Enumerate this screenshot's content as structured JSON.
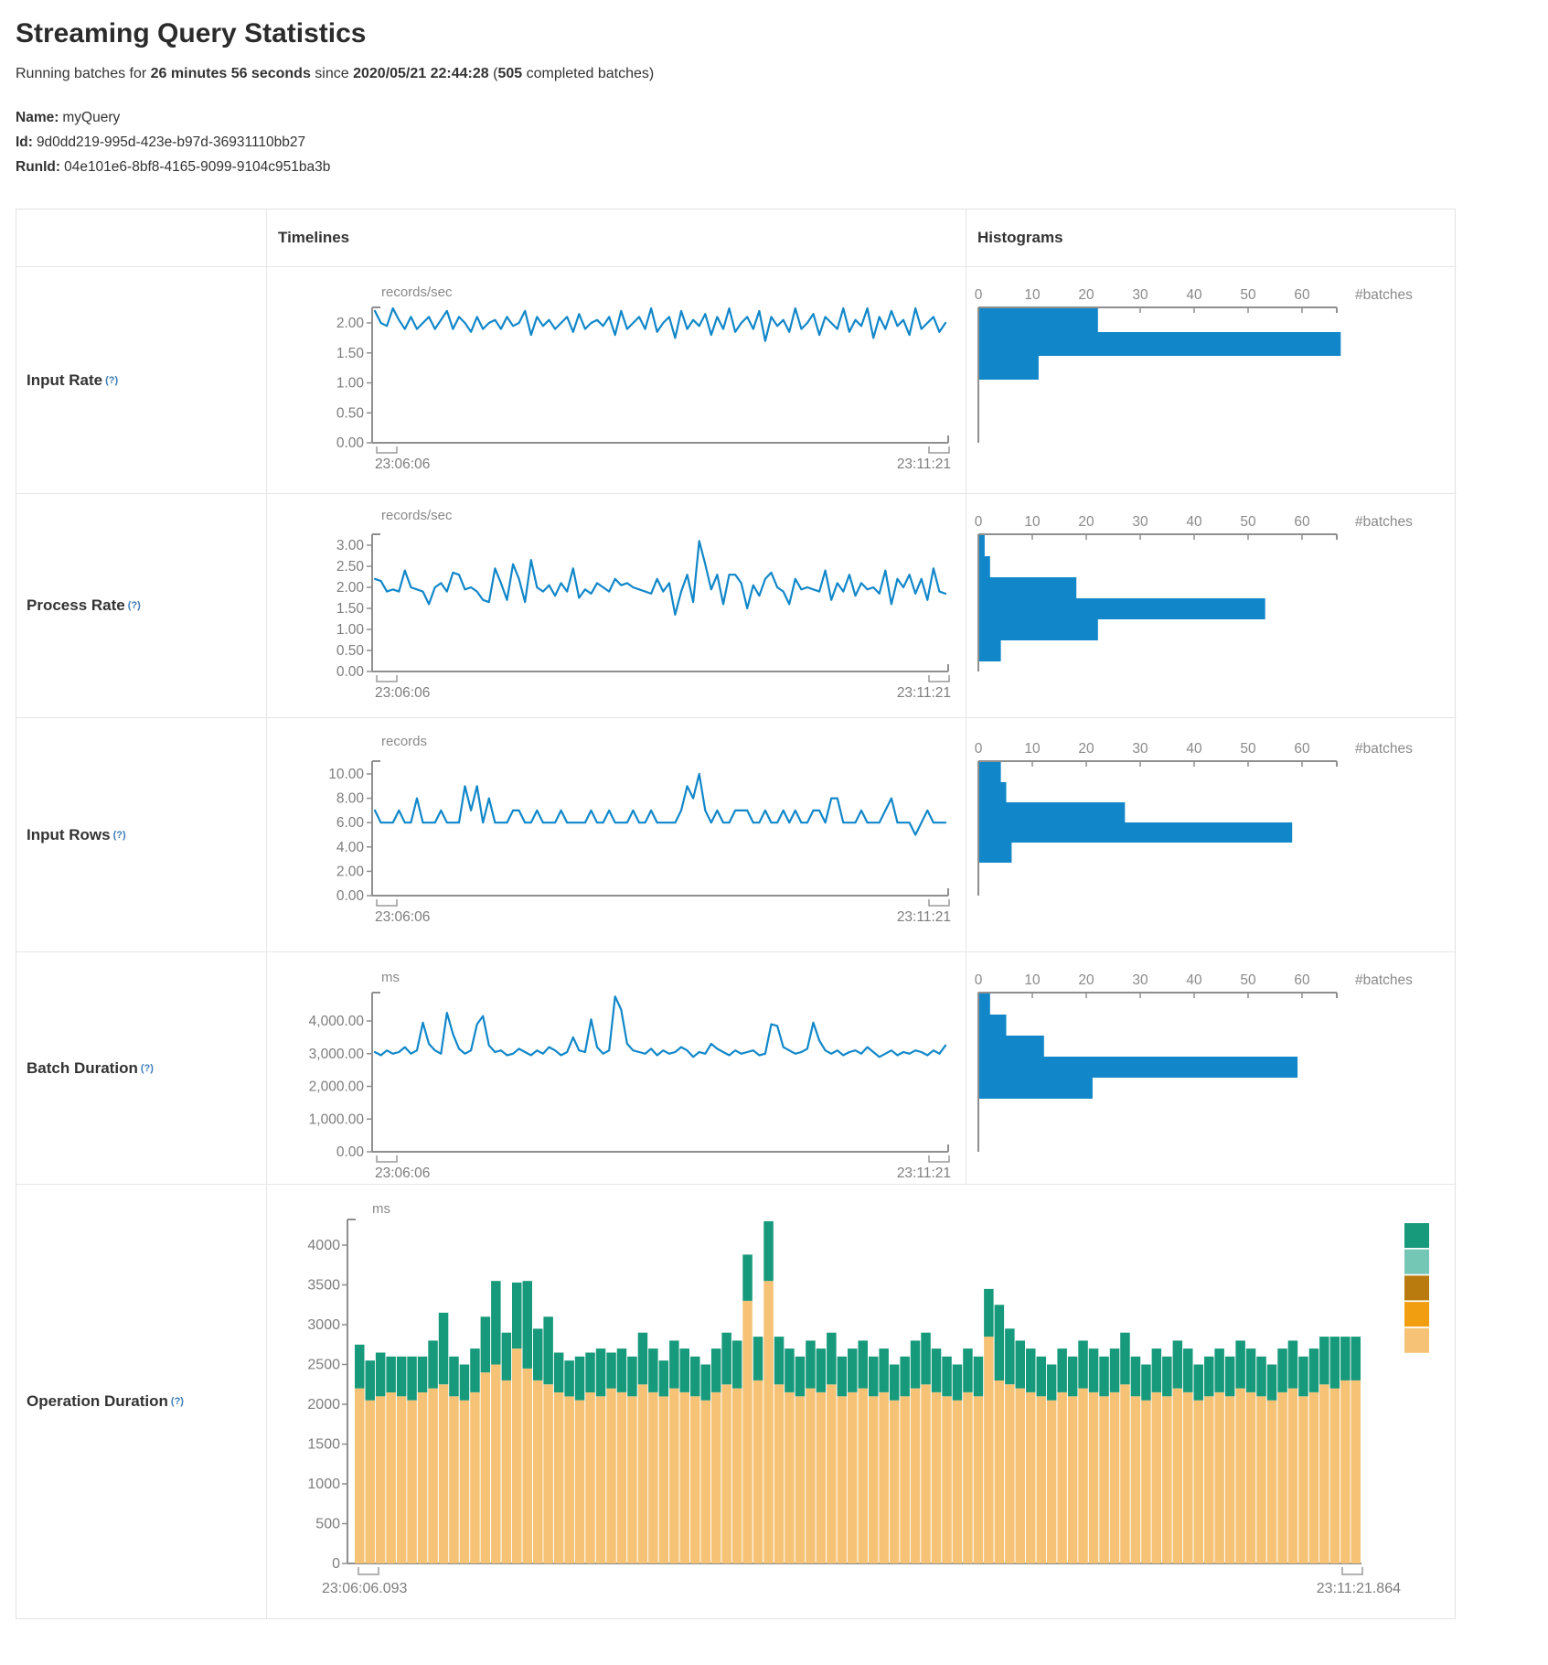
{
  "page": {
    "title": "Streaming Query Statistics",
    "subtitle_prefix": "Running batches for ",
    "duration": "26 minutes 56 seconds",
    "since_text": " since ",
    "start_time": "2020/05/21 22:44:28",
    "open_paren": " (",
    "batches_count": "505",
    "subtitle_suffix": " completed batches)",
    "name_label": "Name:",
    "name_value": "myQuery",
    "id_label": "Id:",
    "id_value": "9d0dd219-995d-423e-b97d-36931110bb27",
    "runid_label": "RunId:",
    "runid_value": "04e101e6-8bf8-4165-9099-9104c951ba3b"
  },
  "table": {
    "col_timelines": "Timelines",
    "col_histograms": "Histograms",
    "help_marker": "(?)",
    "hist_axis_label": "#batches",
    "hist_ticks": [
      0,
      10,
      20,
      30,
      40,
      50,
      60
    ]
  },
  "colors": {
    "line_blue": "#1187c9",
    "hist_blue": "#1187c9",
    "axis_gray": "#8f8f8f",
    "tick_text": "#8a8a8a",
    "stack_base_tan": "#f6c376",
    "stack_top_green": "#179a7c",
    "legend_colors": [
      "#179a7c",
      "#74c6b5",
      "#b97a0e",
      "#f19e11",
      "#f6c376"
    ]
  },
  "rows": [
    {
      "label": "Input Rate",
      "type": "line",
      "unit": "records/sec",
      "x_start_label": "23:06:06",
      "x_end_label": "23:11:21",
      "y_ticks": [
        "2.00",
        "1.50",
        "1.00",
        "0.50",
        "0.00"
      ],
      "y_tick_values": [
        2,
        1.5,
        1,
        0.5,
        0
      ],
      "values": [
        2.2,
        2.0,
        1.95,
        2.3,
        2.05,
        1.9,
        2.1,
        1.9,
        2.0,
        2.1,
        1.9,
        2.05,
        2.2,
        1.9,
        2.1,
        2.0,
        1.85,
        2.1,
        1.9,
        2.0,
        2.05,
        1.9,
        2.1,
        1.95,
        2.0,
        2.2,
        1.8,
        2.1,
        1.95,
        2.05,
        1.9,
        2.0,
        2.1,
        1.85,
        2.15,
        1.9,
        2.0,
        2.05,
        1.95,
        2.1,
        1.8,
        2.2,
        1.9,
        2.0,
        2.1,
        1.9,
        2.3,
        1.85,
        2.0,
        2.1,
        1.75,
        2.2,
        1.9,
        2.05,
        1.95,
        2.15,
        1.8,
        2.1,
        1.9,
        2.3,
        1.85,
        2.0,
        2.1,
        1.9,
        2.2,
        1.7,
        2.1,
        1.95,
        2.05,
        1.85,
        2.3,
        1.9,
        2.0,
        2.15,
        1.8,
        2.1,
        2.0,
        1.9,
        2.25,
        1.85,
        2.05,
        1.95,
        2.3,
        1.75,
        2.1,
        1.9,
        2.2,
        1.95,
        2.05,
        1.8,
        2.25,
        1.9,
        2.0,
        2.1,
        1.85,
        2.0
      ],
      "histogram": [
        22,
        67,
        11
      ]
    },
    {
      "label": "Process Rate",
      "type": "line",
      "unit": "records/sec",
      "x_start_label": "23:06:06",
      "x_end_label": "23:11:21",
      "y_ticks": [
        "3.00",
        "2.50",
        "2.00",
        "1.50",
        "1.00",
        "0.50",
        "0.00"
      ],
      "y_tick_values": [
        3,
        2.5,
        2,
        1.5,
        1,
        0.5,
        0
      ],
      "values": [
        2.2,
        2.15,
        1.9,
        1.95,
        1.9,
        2.4,
        2.0,
        1.95,
        1.9,
        1.6,
        2.0,
        2.1,
        1.9,
        2.35,
        2.3,
        1.95,
        2.0,
        1.9,
        1.7,
        1.65,
        2.45,
        2.1,
        1.7,
        2.55,
        2.2,
        1.65,
        2.65,
        2.0,
        1.9,
        2.05,
        1.8,
        2.1,
        1.9,
        2.45,
        1.75,
        1.95,
        1.85,
        2.1,
        2.0,
        1.9,
        2.2,
        2.05,
        2.1,
        2.0,
        1.95,
        1.9,
        1.85,
        2.2,
        1.9,
        2.1,
        1.35,
        1.9,
        2.3,
        1.65,
        3.1,
        2.55,
        1.95,
        2.3,
        1.6,
        2.3,
        2.3,
        2.1,
        1.5,
        2.05,
        1.8,
        2.2,
        2.35,
        2.0,
        1.9,
        1.6,
        2.2,
        1.95,
        2.0,
        1.95,
        1.9,
        2.4,
        1.7,
        2.1,
        1.9,
        2.3,
        1.8,
        2.1,
        1.95,
        2.0,
        1.85,
        2.4,
        1.6,
        2.2,
        2.0,
        2.3,
        1.85,
        2.2,
        1.7,
        2.45,
        1.9,
        1.85
      ],
      "histogram": [
        1,
        2,
        18,
        53,
        22,
        4
      ]
    },
    {
      "label": "Input Rows",
      "type": "line",
      "unit": "records",
      "x_start_label": "23:06:06",
      "x_end_label": "23:11:21",
      "y_ticks": [
        "10.00",
        "8.00",
        "6.00",
        "4.00",
        "2.00",
        "0.00"
      ],
      "y_tick_values": [
        10,
        8,
        6,
        4,
        2,
        0
      ],
      "values": [
        7,
        6,
        6,
        6,
        7,
        6,
        6,
        8,
        6,
        6,
        6,
        7,
        6,
        6,
        6,
        9,
        7,
        9,
        6,
        8,
        6,
        6,
        6,
        7,
        7,
        6,
        6,
        7,
        6,
        6,
        6,
        7,
        6,
        6,
        6,
        6,
        7,
        6,
        6,
        7,
        6,
        6,
        6,
        7,
        6,
        6,
        7,
        6,
        6,
        6,
        6,
        7,
        9,
        8,
        10,
        7,
        6,
        7,
        6,
        6,
        7,
        7,
        7,
        6,
        6,
        7,
        6,
        6,
        7,
        6,
        7,
        6,
        6,
        7,
        7,
        6,
        8,
        8,
        6,
        6,
        6,
        7,
        6,
        6,
        6,
        7,
        8,
        6,
        6,
        6,
        5,
        6,
        7,
        6,
        6,
        6
      ],
      "histogram": [
        4,
        5,
        27,
        58,
        6
      ]
    },
    {
      "label": "Batch Duration",
      "type": "line",
      "unit": "ms",
      "x_start_label": "23:06:06",
      "x_end_label": "23:11:21",
      "y_ticks": [
        "4,000.00",
        "3,000.00",
        "2,000.00",
        "1,000.00",
        "0.00"
      ],
      "y_tick_values": [
        4000,
        3000,
        2000,
        1000,
        0
      ],
      "values": [
        3050,
        2950,
        3100,
        3000,
        3050,
        3200,
        3000,
        3100,
        3950,
        3300,
        3100,
        3000,
        4250,
        3600,
        3150,
        3000,
        3100,
        3900,
        4150,
        3250,
        3050,
        3100,
        2950,
        3000,
        3150,
        3050,
        2950,
        3100,
        3000,
        3200,
        3100,
        2950,
        3050,
        3500,
        3100,
        3050,
        4050,
        3200,
        3000,
        3100,
        4750,
        4350,
        3300,
        3100,
        3050,
        3000,
        3150,
        2950,
        3100,
        3000,
        3050,
        3200,
        3100,
        2900,
        3050,
        3000,
        3300,
        3150,
        3050,
        2950,
        3100,
        3000,
        3050,
        3100,
        2950,
        3000,
        3900,
        3850,
        3200,
        3100,
        3000,
        3050,
        3150,
        3950,
        3400,
        3100,
        3000,
        3100,
        2950,
        3050,
        3100,
        3000,
        3200,
        3050,
        2900,
        3000,
        3100,
        2950,
        3050,
        3000,
        3100,
        3050,
        2950,
        3100,
        3000,
        3250
      ],
      "histogram": [
        2,
        5,
        12,
        59,
        21
      ]
    }
  ],
  "operation_duration": {
    "label": "Operation Duration",
    "type": "stacked-bar",
    "unit": "ms",
    "x_start_label": "23:06:06.093",
    "x_end_label": "23:11:21.864",
    "y_ticks": [
      "4000",
      "3500",
      "3000",
      "2500",
      "2000",
      "1500",
      "1000",
      "500",
      "0"
    ],
    "y_tick_values": [
      4000,
      3500,
      3000,
      2500,
      2000,
      1500,
      1000,
      500,
      0
    ],
    "bars": {
      "base": [
        2200,
        2050,
        2100,
        2150,
        2100,
        2050,
        2150,
        2200,
        2250,
        2100,
        2050,
        2150,
        2400,
        2500,
        2300,
        2700,
        2450,
        2300,
        2250,
        2150,
        2100,
        2050,
        2150,
        2100,
        2200,
        2150,
        2100,
        2250,
        2150,
        2100,
        2200,
        2150,
        2100,
        2050,
        2150,
        2250,
        2200,
        3300,
        2300,
        3550,
        2250,
        2150,
        2100,
        2200,
        2150,
        2250,
        2100,
        2150,
        2200,
        2100,
        2150,
        2050,
        2100,
        2200,
        2250,
        2150,
        2100,
        2050,
        2150,
        2100,
        2850,
        2300,
        2250,
        2200,
        2150,
        2100,
        2050,
        2150,
        2100,
        2200,
        2150,
        2100,
        2150,
        2250,
        2100,
        2050,
        2150,
        2100,
        2200,
        2150,
        2050,
        2100,
        2150,
        2100,
        2200,
        2150,
        2100,
        2050,
        2150,
        2200,
        2100,
        2150,
        2250,
        2200,
        2300,
        2300
      ],
      "top": [
        550,
        500,
        550,
        450,
        500,
        550,
        450,
        600,
        900,
        500,
        450,
        550,
        700,
        1050,
        600,
        830,
        1100,
        650,
        850,
        500,
        450,
        550,
        500,
        600,
        450,
        550,
        500,
        650,
        550,
        450,
        600,
        550,
        500,
        450,
        550,
        650,
        600,
        580,
        550,
        750,
        600,
        550,
        500,
        600,
        550,
        650,
        500,
        550,
        600,
        500,
        550,
        450,
        500,
        600,
        650,
        550,
        500,
        450,
        550,
        500,
        600,
        950,
        700,
        600,
        550,
        500,
        450,
        550,
        500,
        600,
        550,
        500,
        550,
        650,
        500,
        450,
        550,
        500,
        600,
        550,
        450,
        500,
        550,
        500,
        600,
        550,
        500,
        450,
        550,
        600,
        500,
        550,
        600,
        650,
        550,
        550
      ]
    }
  }
}
